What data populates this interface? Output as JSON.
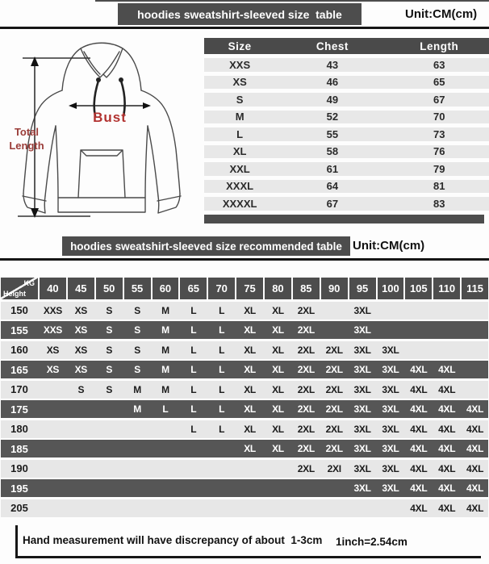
{
  "colors": {
    "bar_dark": "#4d4d4d",
    "row_light": "#e7e7e7",
    "row_dark": "#565656",
    "bust_red": "#b23230",
    "total_length_red": "#9a3c38"
  },
  "section1": {
    "title": "hoodies sweatshirt-sleeved size  table",
    "unit": "Unit:CM(cm)",
    "diagram": {
      "total_length_line1": "Total",
      "total_length_line2": "Length",
      "bust_label": "Bust"
    },
    "size_table": {
      "columns": [
        "Size",
        "Chest",
        "Length"
      ],
      "rows": [
        [
          "XXS",
          "43",
          "63"
        ],
        [
          "XS",
          "46",
          "65"
        ],
        [
          "S",
          "49",
          "67"
        ],
        [
          "M",
          "52",
          "70"
        ],
        [
          "L",
          "55",
          "73"
        ],
        [
          "XL",
          "58",
          "76"
        ],
        [
          "XXL",
          "61",
          "79"
        ],
        [
          "XXXL",
          "64",
          "81"
        ],
        [
          "XXXXL",
          "67",
          "83"
        ]
      ]
    }
  },
  "section2": {
    "title": "hoodies sweatshirt-sleeved size recommended table",
    "unit": "Unit:CM(cm)",
    "matrix": {
      "corner": {
        "top": "KG",
        "bottom": "Height"
      },
      "weights": [
        "40",
        "45",
        "50",
        "55",
        "60",
        "65",
        "70",
        "75",
        "80",
        "85",
        "90",
        "95",
        "100",
        "105",
        "110",
        "115"
      ],
      "rows": [
        {
          "height": "150",
          "sizes": [
            "XXS",
            "XS",
            "S",
            "S",
            "M",
            "L",
            "L",
            "XL",
            "XL",
            "2XL",
            "",
            "3XL",
            "",
            "",
            "",
            ""
          ]
        },
        {
          "height": "155",
          "sizes": [
            "XXS",
            "XS",
            "S",
            "S",
            "M",
            "L",
            "L",
            "XL",
            "XL",
            "2XL",
            "",
            "3XL",
            "",
            "",
            "",
            ""
          ]
        },
        {
          "height": "160",
          "sizes": [
            "XS",
            "XS",
            "S",
            "S",
            "M",
            "L",
            "L",
            "XL",
            "XL",
            "2XL",
            "2XL",
            "3XL",
            "3XL",
            "",
            "",
            ""
          ]
        },
        {
          "height": "165",
          "sizes": [
            "XS",
            "XS",
            "S",
            "S",
            "M",
            "L",
            "L",
            "XL",
            "XL",
            "2XL",
            "2XL",
            "3XL",
            "3XL",
            "4XL",
            "4XL",
            ""
          ]
        },
        {
          "height": "170",
          "sizes": [
            "",
            "S",
            "S",
            "M",
            "M",
            "L",
            "L",
            "XL",
            "XL",
            "2XL",
            "2XL",
            "3XL",
            "3XL",
            "4XL",
            "4XL",
            ""
          ]
        },
        {
          "height": "175",
          "sizes": [
            "",
            "",
            "",
            "M",
            "L",
            "L",
            "L",
            "XL",
            "XL",
            "2XL",
            "2XL",
            "3XL",
            "3XL",
            "4XL",
            "4XL",
            "4XL"
          ]
        },
        {
          "height": "180",
          "sizes": [
            "",
            "",
            "",
            "",
            "",
            "L",
            "L",
            "XL",
            "XL",
            "2XL",
            "2XL",
            "3XL",
            "3XL",
            "4XL",
            "4XL",
            "4XL"
          ]
        },
        {
          "height": "185",
          "sizes": [
            "",
            "",
            "",
            "",
            "",
            "",
            "",
            "XL",
            "XL",
            "2XL",
            "2XL",
            "3XL",
            "3XL",
            "4XL",
            "4XL",
            "4XL"
          ]
        },
        {
          "height": "190",
          "sizes": [
            "",
            "",
            "",
            "",
            "",
            "",
            "",
            "",
            "",
            "2XL",
            "2XI",
            "3XL",
            "3XL",
            "4XL",
            "4XL",
            "4XL"
          ]
        },
        {
          "height": "195",
          "sizes": [
            "",
            "",
            "",
            "",
            "",
            "",
            "",
            "",
            "",
            "",
            "",
            "3XL",
            "3XL",
            "4XL",
            "4XL",
            "4XL"
          ]
        },
        {
          "height": "205",
          "sizes": [
            "",
            "",
            "",
            "",
            "",
            "",
            "",
            "",
            "",
            "",
            "",
            "",
            "",
            "4XL",
            "4XL",
            "4XL"
          ]
        }
      ]
    }
  },
  "footer": {
    "note": "Hand measurement will have discrepancy of about  1-3cm",
    "conversion": "1inch=2.54cm"
  }
}
